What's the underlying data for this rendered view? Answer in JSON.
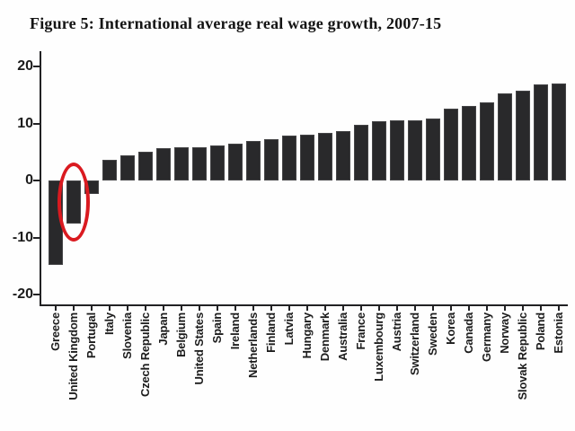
{
  "title": "Figure 5: International average real wage growth, 2007-15",
  "colors": {
    "bar": "#29292b",
    "axis": "#222224",
    "highlight_circle": "#da1a20",
    "background": "#fefefe",
    "text": "#1c1c1c"
  },
  "annotation": {
    "shape": "ellipse",
    "highlighted_country": "United Kingdom",
    "color": "#da1a20"
  },
  "chart_data": {
    "type": "bar",
    "title": "Figure 5: International average real wage growth, 2007-15",
    "categories": [
      "Greece",
      "United Kingdom",
      "Portugal",
      "Italy",
      "Slovenia",
      "Czech Republic",
      "Japan",
      "Belgium",
      "United States",
      "Spain",
      "Ireland",
      "Netherlands",
      "Finland",
      "Latvia",
      "Hungary",
      "Denmark",
      "Australia",
      "France",
      "Luxembourg",
      "Austria",
      "Switzerland",
      "Sweden",
      "Korea",
      "Canada",
      "Germany",
      "Norway",
      "Slovak Republic",
      "Poland",
      "Estonia"
    ],
    "values": [
      -14.8,
      -7.5,
      -2.3,
      3.6,
      4.4,
      5.0,
      5.6,
      5.8,
      5.9,
      6.1,
      6.5,
      7.0,
      7.3,
      7.9,
      8.1,
      8.3,
      8.7,
      9.8,
      10.4,
      10.5,
      10.5,
      10.8,
      12.6,
      13.1,
      13.7,
      15.3,
      15.8,
      16.8,
      17.0
    ],
    "xlabel": "",
    "ylabel": "",
    "ylim": [
      -20,
      20
    ],
    "yticks": [
      20,
      10,
      0,
      -10,
      -20
    ],
    "grid": false,
    "legend": "none",
    "bar_color": "#29292b",
    "annotation": {
      "type": "ellipse",
      "target": "United Kingdom",
      "color": "#da1a20"
    }
  }
}
